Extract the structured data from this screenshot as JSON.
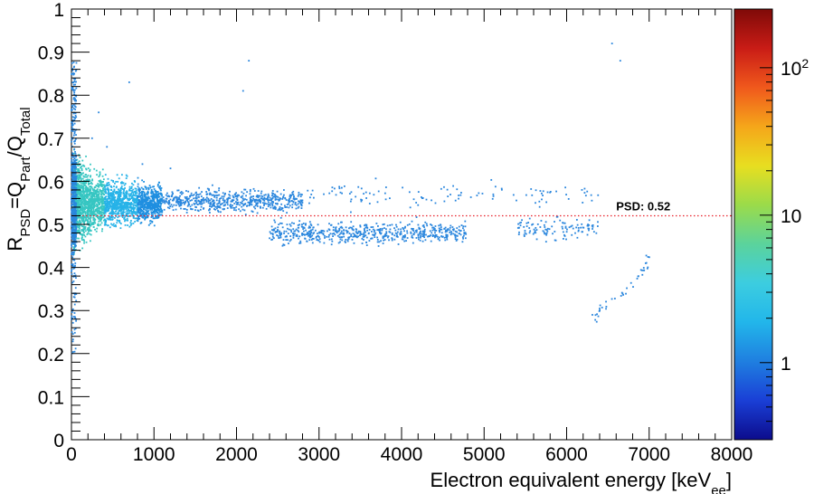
{
  "chart_data": {
    "type": "heatmap",
    "subtype": "2D histogram scatter, colz",
    "title": "",
    "xlabel": {
      "text": "Electron equivalent energy [keV",
      "sub": "ee",
      "close": "]"
    },
    "ylabel": {
      "R": "R",
      "R_sub": "PSD",
      "eq": "=Q",
      "Q1_sub": "Part",
      "slash": "/Q",
      "Q2_sub": "Total"
    },
    "xlim": [
      0,
      8000
    ],
    "ylim": [
      0,
      1
    ],
    "x_ticks": [
      0,
      1000,
      2000,
      3000,
      4000,
      5000,
      6000,
      7000,
      8000
    ],
    "x_tick_labels": [
      "0",
      "1000",
      "2000",
      "3000",
      "4000",
      "5000",
      "6000",
      "7000",
      "8000"
    ],
    "y_ticks": [
      0,
      0.1,
      0.2,
      0.3,
      0.4,
      0.5,
      0.6,
      0.7,
      0.8,
      0.9,
      1
    ],
    "y_tick_labels": [
      "0",
      "0.1",
      "0.2",
      "0.3",
      "0.4",
      "0.5",
      "0.6",
      "0.7",
      "0.8",
      "0.9",
      "1"
    ],
    "grid": false,
    "threshold_line": {
      "y": 0.52,
      "color": "#e8202a",
      "style": "dotted",
      "label": "PSD: 0.52"
    },
    "colorbar": {
      "scale": "log",
      "range": [
        0.3,
        250
      ],
      "ticks": [
        1,
        10,
        100
      ],
      "tick_labels": [
        {
          "base": "1",
          "exp": ""
        },
        {
          "base": "10",
          "exp": ""
        },
        {
          "base": "10",
          "exp": "2"
        }
      ],
      "colormap": [
        "#0c0c8c",
        "#1a3fd6",
        "#1f7fe0",
        "#22b6ea",
        "#3ccde0",
        "#5bd39c",
        "#9bdb4a",
        "#e8de20",
        "#f5a61a",
        "#f0581c",
        "#c91c16",
        "#7f0a08"
      ]
    },
    "series": [
      {
        "region": "dense band, upper population",
        "x_range": [
          30,
          1100
        ],
        "y_mean": 0.55,
        "y_spread": 0.02,
        "density": "high"
      },
      {
        "region": "upper band continuation",
        "x_range": [
          1100,
          2800
        ],
        "y_mean": 0.555,
        "y_spread": 0.012,
        "density": "medium"
      },
      {
        "region": "upper sparse tail",
        "x_range": [
          2800,
          6500
        ],
        "y_mean": 0.57,
        "y_spread": 0.015,
        "density": "low"
      },
      {
        "region": "lower band (alpha-like)",
        "x_range": [
          2400,
          4800
        ],
        "y_mean": 0.48,
        "y_spread": 0.012,
        "density": "medium"
      },
      {
        "region": "lower band cluster",
        "x_range": [
          5400,
          6400
        ],
        "y_mean": 0.49,
        "y_spread": 0.012,
        "density": "low"
      },
      {
        "region": "low-energy vertical spread",
        "x_range": [
          0,
          60
        ],
        "y_range": [
          0.2,
          0.88
        ],
        "density": "medium"
      },
      {
        "region": "curved tail",
        "points": [
          [
            6250,
            0.27
          ],
          [
            6400,
            0.3
          ],
          [
            6600,
            0.33
          ],
          [
            6800,
            0.36
          ],
          [
            6950,
            0.4
          ],
          [
            7000,
            0.43
          ]
        ],
        "density": "low"
      }
    ],
    "outliers": [
      [
        6550,
        0.92
      ],
      [
        6650,
        0.88
      ],
      [
        2150,
        0.88
      ],
      [
        2080,
        0.81
      ],
      [
        700,
        0.83
      ],
      [
        330,
        0.76
      ],
      [
        430,
        0.68
      ],
      [
        860,
        0.64
      ],
      [
        1200,
        0.63
      ],
      [
        250,
        0.7
      ]
    ]
  }
}
